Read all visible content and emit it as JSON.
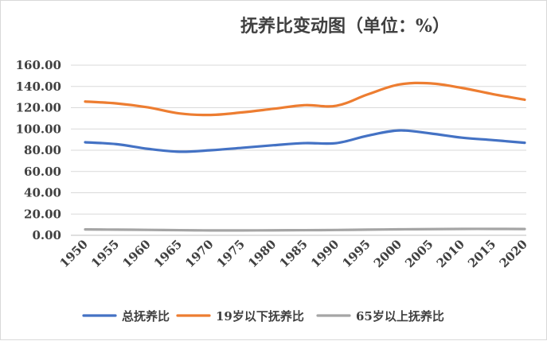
{
  "chart_data": {
    "type": "line",
    "title": "抚养比变动图（单位：%）",
    "x": [
      "1950",
      "1955",
      "1960",
      "1965",
      "1970",
      "1975",
      "1980",
      "1985",
      "1990",
      "1995",
      "2000",
      "2005",
      "2010",
      "2015",
      "2020"
    ],
    "y_ticks": [
      "0.00",
      "20.00",
      "40.00",
      "60.00",
      "80.00",
      "100.00",
      "120.00",
      "140.00",
      "160.00"
    ],
    "ylim": [
      0,
      160
    ],
    "grid": true,
    "legend_position": "bottom",
    "series": [
      {
        "name": "总抚养比",
        "color": "#4472c4",
        "values": [
          87.5,
          85.7,
          81.3,
          78.6,
          80.0,
          82.3,
          84.7,
          86.7,
          86.7,
          93.7,
          98.6,
          95.8,
          91.8,
          89.5,
          87.0
        ]
      },
      {
        "name": "19岁以下抚养比",
        "color": "#ed7d31",
        "values": [
          125.8,
          124.0,
          120.3,
          114.6,
          113.2,
          115.6,
          119.0,
          122.4,
          121.8,
          132.5,
          141.8,
          142.9,
          138.6,
          132.7,
          127.5
        ]
      },
      {
        "name": "65岁以上抚养比",
        "color": "#a5a5a5",
        "values": [
          5.5,
          5.3,
          5.1,
          4.8,
          4.6,
          4.6,
          4.7,
          4.8,
          5.0,
          5.3,
          5.6,
          5.8,
          6.0,
          6.0,
          5.9
        ]
      }
    ]
  }
}
